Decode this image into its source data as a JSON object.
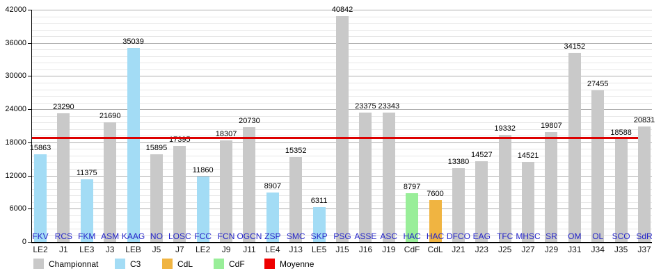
{
  "chart_data": {
    "type": "bar",
    "title": "",
    "xlabel": "",
    "ylabel": "",
    "ylim": [
      0,
      42000
    ],
    "y_tick_labels": [
      "0",
      "6000",
      "12000",
      "18000",
      "24000",
      "30000",
      "36000",
      "42000"
    ],
    "y_major_step": 6000,
    "y_minor_step": 1200,
    "grid": "on",
    "legend_position": "bottom-left",
    "bars": [
      {
        "team": "FKV",
        "match": "LE2",
        "value": 15863,
        "category": "C3"
      },
      {
        "team": "RCS",
        "match": "J1",
        "value": 23290,
        "category": "Championnat"
      },
      {
        "team": "FKM",
        "match": "LE3",
        "value": 11375,
        "category": "C3"
      },
      {
        "team": "ASM",
        "match": "J3",
        "value": 21690,
        "category": "Championnat"
      },
      {
        "team": "KAAG",
        "match": "LEB",
        "value": 35039,
        "category": "C3"
      },
      {
        "team": "NO",
        "match": "J5",
        "value": 15895,
        "category": "Championnat"
      },
      {
        "team": "LOSC",
        "match": "J7",
        "value": 17395,
        "category": "Championnat"
      },
      {
        "team": "FCC",
        "match": "LE2",
        "value": 11860,
        "category": "C3"
      },
      {
        "team": "FCN",
        "match": "J9",
        "value": 18307,
        "category": "Championnat"
      },
      {
        "team": "OGCN",
        "match": "J11",
        "value": 20730,
        "category": "Championnat"
      },
      {
        "team": "ZSP",
        "match": "LE4",
        "value": 8907,
        "category": "C3"
      },
      {
        "team": "SMC",
        "match": "J13",
        "value": 15352,
        "category": "Championnat"
      },
      {
        "team": "SKP",
        "match": "LE5",
        "value": 6311,
        "category": "C3"
      },
      {
        "team": "PSG",
        "match": "J15",
        "value": 40842,
        "category": "Championnat"
      },
      {
        "team": "ASSE",
        "match": "J16",
        "value": 23375,
        "category": "Championnat"
      },
      {
        "team": "ASC",
        "match": "J19",
        "value": 23343,
        "category": "Championnat"
      },
      {
        "team": "HAC",
        "match": "CdF",
        "value": 8797,
        "category": "CdF"
      },
      {
        "team": "HAC",
        "match": "CdL",
        "value": 7600,
        "category": "CdL"
      },
      {
        "team": "DFCO",
        "match": "J21",
        "value": 13380,
        "category": "Championnat"
      },
      {
        "team": "EAG",
        "match": "J23",
        "value": 14527,
        "category": "Championnat"
      },
      {
        "team": "TFC",
        "match": "J25",
        "value": 19332,
        "category": "Championnat"
      },
      {
        "team": "MHSC",
        "match": "J27",
        "value": 14521,
        "category": "Championnat"
      },
      {
        "team": "SR",
        "match": "J29",
        "value": 19807,
        "category": "Championnat"
      },
      {
        "team": "OM",
        "match": "J31",
        "value": 34152,
        "category": "Championnat"
      },
      {
        "team": "OL",
        "match": "J34",
        "value": 27455,
        "category": "Championnat"
      },
      {
        "team": "SCO",
        "match": "J35",
        "value": 18588,
        "category": "Championnat"
      },
      {
        "team": "SdR",
        "match": "J37",
        "value": 20831,
        "category": "Championnat"
      }
    ],
    "average_line": {
      "label": "Moyenne",
      "value": 18800,
      "color": "#dd0000"
    },
    "category_colors": {
      "Championnat": "#c9c9c9",
      "C3": "#a3dcf5",
      "CdL": "#f0b441",
      "CdF": "#99ee99"
    },
    "legend": [
      {
        "label": "Championnat",
        "color": "#c9c9c9"
      },
      {
        "label": "C3",
        "color": "#a3dcf5"
      },
      {
        "label": "CdL",
        "color": "#f0b441"
      },
      {
        "label": "CdF",
        "color": "#99ee99"
      },
      {
        "label": "Moyenne",
        "color": "#ee0000"
      }
    ],
    "text_colors": {
      "team_label": "#2323c8",
      "value_label": "#000000",
      "axis_label": "#000000"
    }
  }
}
